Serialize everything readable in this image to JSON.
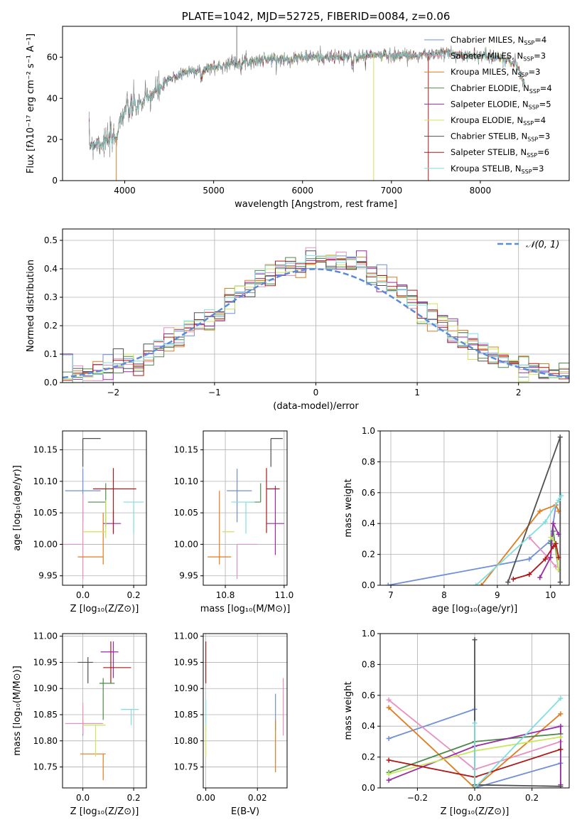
{
  "colors": {
    "chab_miles": "#6f8fd8",
    "salp_miles": "#e88fc0",
    "krou_miles": "#e07b20",
    "chab_elodie": "#4c8a4c",
    "salp_elodie": "#9a2aa8",
    "krou_elodie": "#c8e85a",
    "chab_stelib": "#505050",
    "salp_stelib": "#b01818",
    "krou_stelib": "#80dede",
    "gauss": "#5b8bd8"
  },
  "chart_data": [
    {
      "id": "spectrum",
      "type": "line",
      "title": "PLATE=1042, MJD=52725, FIBERID=0084, z=0.06",
      "xlabel": "wavelength [Angstrom, rest frame]",
      "ylabel": "Flux [fλ10⁻¹⁷ erg cm⁻² s⁻¹ A⁻¹]",
      "xlim": [
        3300,
        9000
      ],
      "ylim": [
        0,
        75
      ],
      "xticks": [
        "4000",
        "5000",
        "6000",
        "7000",
        "8000"
      ],
      "yticks": [
        "0",
        "20",
        "40",
        "60"
      ],
      "legend": "upper-right",
      "legend_entries": [
        {
          "label": "Chabrier MILES, N",
          "sub": "SSP",
          "suffix": "=4"
        },
        {
          "label": "Salpeter MILES, N",
          "sub": "SSP",
          "suffix": "=3"
        },
        {
          "label": "Kroupa MILES, N",
          "sub": "SSP",
          "suffix": "=3"
        },
        {
          "label": "Chabrier ELODIE, N",
          "sub": "SSP",
          "suffix": "=4"
        },
        {
          "label": "Salpeter ELODIE, N",
          "sub": "SSP",
          "suffix": "=5"
        },
        {
          "label": "Kroupa ELODIE, N",
          "sub": "SSP",
          "suffix": "=4"
        },
        {
          "label": "Chabrier STELIB, N",
          "sub": "SSP",
          "suffix": "=3"
        },
        {
          "label": "Salpeter STELIB, N",
          "sub": "SSP",
          "suffix": "=6"
        },
        {
          "label": "Kroupa STELIB, N",
          "sub": "SSP",
          "suffix": "=3"
        }
      ],
      "continuum": [
        [
          3600,
          18
        ],
        [
          3800,
          19
        ],
        [
          3900,
          21
        ],
        [
          3950,
          30
        ],
        [
          4000,
          34
        ],
        [
          4200,
          38
        ],
        [
          4350,
          43
        ],
        [
          4500,
          49
        ],
        [
          4700,
          53
        ],
        [
          5000,
          55
        ],
        [
          5200,
          57
        ],
        [
          5400,
          58
        ],
        [
          5600,
          59
        ],
        [
          5800,
          59
        ],
        [
          6000,
          60
        ],
        [
          6200,
          60
        ],
        [
          6500,
          60
        ],
        [
          6800,
          61
        ],
        [
          7000,
          61
        ],
        [
          7200,
          61
        ],
        [
          7400,
          61
        ],
        [
          7600,
          62
        ],
        [
          7800,
          61
        ],
        [
          8000,
          61
        ],
        [
          8200,
          60
        ],
        [
          8400,
          57
        ],
        [
          8500,
          47
        ]
      ]
    },
    {
      "id": "residuals",
      "type": "histogram",
      "xlabel": "(data-model)/error",
      "ylabel": "Normed distribution",
      "xlim": [
        -2.5,
        2.5
      ],
      "ylim": [
        0,
        0.54
      ],
      "xticks": [
        "−2",
        "−1",
        "0",
        "1",
        "2"
      ],
      "yticks": [
        "0.0",
        "0.1",
        "0.2",
        "0.3",
        "0.4",
        "0.5"
      ],
      "grid": true,
      "legend": "upper-right",
      "gauss_label": "𝒩(0, 1)",
      "bin_width": 0.1
    },
    {
      "id": "age_vs_Z",
      "type": "errorbar",
      "xlabel": "Z [log₁₀(Z/Z⊙)]",
      "ylabel": "age [log₁₀(age/yr)]",
      "xlim": [
        -0.08,
        0.25
      ],
      "ylim": [
        9.935,
        10.18
      ],
      "xticks": [
        "0.0",
        "0.2"
      ],
      "yticks": [
        "9.95",
        "10.00",
        "10.05",
        "10.10",
        "10.15"
      ],
      "grid": true,
      "points": [
        {
          "color": "chab_miles",
          "x": 0.0,
          "y": 10.085,
          "xerr": [
            0.07,
            0.07
          ],
          "yerr": [
            0.05,
            0.035
          ]
        },
        {
          "color": "salp_miles",
          "x": 0.0,
          "y": 10.0,
          "xerr": [
            0.08,
            0.0
          ],
          "yerr": [
            0.055,
            0.08
          ]
        },
        {
          "color": "krou_miles",
          "x": 0.03,
          "y": 9.98,
          "xerr": [
            0.05,
            0.05
          ],
          "yerr": [
            0.0,
            0.0
          ]
        },
        {
          "color": "krou_miles",
          "x": 0.08,
          "y": 9.98,
          "xerr": [
            0.0,
            0.0
          ],
          "yerr": [
            0.012,
            0.07
          ]
        },
        {
          "color": "chab_elodie",
          "x": 0.09,
          "y": 10.067,
          "xerr": [
            0.07,
            0.0
          ],
          "yerr": [
            0.04,
            0.03
          ]
        },
        {
          "color": "salp_elodie",
          "x": 0.12,
          "y": 10.033,
          "xerr": [
            0.04,
            0.03
          ],
          "yerr": [
            0.0,
            0.0
          ]
        },
        {
          "color": "salp_elodie",
          "x": 0.12,
          "y": 10.033,
          "xerr": [
            0.0,
            0.0
          ],
          "yerr": [
            0.017,
            0.02
          ]
        },
        {
          "color": "krou_elodie",
          "x": 0.05,
          "y": 10.02,
          "xerr": [
            0.05,
            0.04
          ],
          "yerr": [
            0.0,
            0.0
          ]
        },
        {
          "color": "krou_elodie",
          "x": 0.09,
          "y": 10.02,
          "xerr": [
            0.0,
            0.0
          ],
          "yerr": [
            0.01,
            0.05
          ]
        },
        {
          "color": "chab_stelib",
          "x": 0.0,
          "y": 10.168,
          "xerr": [
            0.0,
            0.07
          ],
          "yerr": [
            0.045,
            0.0
          ]
        },
        {
          "color": "salp_stelib",
          "x": 0.12,
          "y": 10.088,
          "xerr": [
            0.08,
            0.09
          ],
          "yerr": [
            0.07,
            0.033
          ]
        },
        {
          "color": "krou_stelib",
          "x": 0.2,
          "y": 10.067,
          "xerr": [
            0.04,
            0.04
          ],
          "yerr": [
            0.05,
            0.0
          ]
        }
      ]
    },
    {
      "id": "age_vs_mass",
      "type": "errorbar",
      "xlabel": "mass [log₁₀(M/M⊙)]",
      "ylabel": "",
      "xlim": [
        10.725,
        11.01
      ],
      "ylim": [
        9.935,
        10.18
      ],
      "xticks": [
        "10.8",
        "11.0"
      ],
      "yticks": [
        "9.95",
        "10.00",
        "10.05",
        "10.10",
        "10.15"
      ],
      "grid": true,
      "points": [
        {
          "color": "chab_miles",
          "x": 10.84,
          "y": 10.085,
          "xerr": [
            0.035,
            0.05
          ],
          "yerr": [
            0.05,
            0.035
          ]
        },
        {
          "color": "salp_miles",
          "x": 10.84,
          "y": 10.0,
          "xerr": [
            0.0,
            0.07
          ],
          "yerr": [
            0.055,
            0.0
          ]
        },
        {
          "color": "krou_miles",
          "x": 10.78,
          "y": 9.98,
          "xerr": [
            0.04,
            0.04
          ],
          "yerr": [
            0.012,
            0.105
          ]
        },
        {
          "color": "chab_elodie",
          "x": 10.92,
          "y": 10.067,
          "xerr": [
            0.04,
            0.0
          ],
          "yerr": [
            0.0,
            0.03
          ]
        },
        {
          "color": "salp_elodie",
          "x": 10.97,
          "y": 10.033,
          "xerr": [
            0.03,
            0.03
          ],
          "yerr": [
            0.05,
            0.06
          ]
        },
        {
          "color": "krou_elodie",
          "x": 10.83,
          "y": 10.02,
          "xerr": [
            0.04,
            0.0
          ],
          "yerr": [
            0.0,
            0.0
          ]
        },
        {
          "color": "chab_stelib",
          "x": 10.955,
          "y": 10.168,
          "xerr": [
            0.0,
            0.04
          ],
          "yerr": [
            0.045,
            0.0
          ]
        },
        {
          "color": "salp_stelib",
          "x": 10.94,
          "y": 10.088,
          "xerr": [
            0.0,
            0.045
          ],
          "yerr": [
            0.07,
            0.033
          ]
        },
        {
          "color": "krou_stelib",
          "x": 10.87,
          "y": 10.067,
          "xerr": [
            0.05,
            0.03
          ],
          "yerr": [
            0.05,
            0.0
          ]
        }
      ]
    },
    {
      "id": "weight_vs_age",
      "type": "line",
      "xlabel": "age [log₁₀(age/yr)]",
      "ylabel": "mass weight",
      "xlim": [
        6.8,
        10.35
      ],
      "ylim": [
        0,
        1.0
      ],
      "xticks": [
        "7",
        "8",
        "9",
        "10"
      ],
      "yticks": [
        "0.0",
        "0.2",
        "0.4",
        "0.6",
        "0.8",
        "1.0"
      ],
      "grid": true,
      "series": [
        {
          "color": "chab_miles",
          "x": [
            6.95,
            9.6,
            10.0,
            10.1
          ],
          "y": [
            0.0,
            0.17,
            0.29,
            0.52
          ]
        },
        {
          "color": "salp_miles",
          "x": [
            9.6,
            9.95,
            10.1
          ],
          "y": [
            0.31,
            0.18,
            0.12
          ]
        },
        {
          "color": "krou_miles",
          "x": [
            8.7,
            9.8,
            10.1,
            10.15
          ],
          "y": [
            0.0,
            0.48,
            0.52,
            0.48
          ]
        },
        {
          "color": "chab_elodie",
          "x": [
            10.0,
            10.05,
            10.15
          ],
          "y": [
            0.27,
            0.35,
            0.1
          ]
        },
        {
          "color": "salp_elodie",
          "x": [
            9.8,
            10.0,
            10.05,
            10.15
          ],
          "y": [
            0.05,
            0.18,
            0.4,
            0.33
          ]
        },
        {
          "color": "krou_elodie",
          "x": [
            10.0,
            10.1,
            10.15
          ],
          "y": [
            0.31,
            0.27,
            0.1
          ]
        },
        {
          "color": "chab_stelib",
          "x": [
            9.2,
            10.18,
            10.18
          ],
          "y": [
            0.02,
            0.96,
            0.02
          ]
        },
        {
          "color": "salp_stelib",
          "x": [
            9.3,
            9.6,
            9.9,
            10.05,
            10.1,
            10.15
          ],
          "y": [
            0.04,
            0.07,
            0.17,
            0.25,
            0.27,
            0.18
          ]
        },
        {
          "color": "krou_stelib",
          "x": [
            8.6,
            9.9,
            10.15,
            10.2
          ],
          "y": [
            0.0,
            0.41,
            0.55,
            0.58
          ]
        }
      ]
    },
    {
      "id": "mass_vs_Z",
      "type": "errorbar",
      "xlabel": "Z [log₁₀(Z/Z⊙)]",
      "ylabel": "mass [log₁₀(M/M⊙)]",
      "xlim": [
        -0.08,
        0.25
      ],
      "ylim": [
        10.71,
        11.005
      ],
      "xticks": [
        "0.0",
        "0.2"
      ],
      "yticks": [
        "10.75",
        "10.80",
        "10.85",
        "10.90",
        "10.95",
        "11.00"
      ],
      "grid": true,
      "points": [
        {
          "color": "chab_miles",
          "x": 0.0,
          "y": 10.84,
          "xerr": [
            0.0,
            0.0
          ],
          "yerr": [
            0.03,
            0.0
          ]
        },
        {
          "color": "salp_miles",
          "x": 0.0,
          "y": 10.833,
          "xerr": [
            0.07,
            0.08
          ],
          "yerr": [
            0.02,
            0.04
          ]
        },
        {
          "color": "krou_miles",
          "x": 0.05,
          "y": 10.775,
          "xerr": [
            0.06,
            0.04
          ],
          "yerr": [
            0.0,
            0.0
          ]
        },
        {
          "color": "krou_miles",
          "x": 0.08,
          "y": 10.775,
          "xerr": [
            0.0,
            0.0
          ],
          "yerr": [
            0.05,
            0.0
          ]
        },
        {
          "color": "chab_elodie",
          "x": 0.08,
          "y": 10.91,
          "xerr": [
            0.0,
            0.0
          ],
          "yerr": [
            0.07,
            0.01
          ]
        },
        {
          "color": "salp_elodie",
          "x": 0.12,
          "y": 10.97,
          "xerr": [
            0.05,
            0.02
          ],
          "yerr": [
            0.05,
            0.02
          ]
        },
        {
          "color": "krou_elodie",
          "x": 0.05,
          "y": 10.83,
          "xerr": [
            0.05,
            0.04
          ],
          "yerr": [
            0.06,
            0.0
          ]
        },
        {
          "color": "chab_stelib",
          "x": 0.02,
          "y": 10.95,
          "xerr": [
            0.04,
            0.02
          ],
          "yerr": [
            0.04,
            0.01
          ]
        },
        {
          "color": "salp_stelib",
          "x": 0.11,
          "y": 10.94,
          "xerr": [
            0.03,
            0.08
          ],
          "yerr": [
            0.03,
            0.05
          ]
        },
        {
          "color": "chab_elodie",
          "x": 0.095,
          "y": 10.91,
          "xerr": [
            0.03,
            0.03
          ],
          "yerr": [
            0.0,
            0.0
          ]
        },
        {
          "color": "krou_stelib",
          "x": 0.19,
          "y": 10.86,
          "xerr": [
            0.04,
            0.03
          ],
          "yerr": [
            0.03,
            0.0
          ]
        }
      ]
    },
    {
      "id": "mass_vs_ebv",
      "type": "errorbar",
      "xlabel": "E(B-V)",
      "ylabel": "",
      "xlim": [
        -0.001,
        0.0315
      ],
      "ylim": [
        10.71,
        11.005
      ],
      "xticks": [
        "0.00",
        "0.02"
      ],
      "yticks": [
        "10.75",
        "10.80",
        "10.85",
        "10.90",
        "10.95",
        "11.00"
      ],
      "grid": true,
      "points": [
        {
          "color": "salp_stelib",
          "x": 0.0,
          "y": 10.95,
          "xerr": [
            0.0,
            0.0
          ],
          "yerr": [
            0.04,
            0.04
          ]
        },
        {
          "color": "krou_stelib",
          "x": 0.0,
          "y": 10.86,
          "xerr": [
            0.0,
            0.0
          ],
          "yerr": [
            0.04,
            0.02
          ]
        },
        {
          "color": "krou_elodie",
          "x": 0.0,
          "y": 10.8,
          "xerr": [
            0.0,
            0.0
          ],
          "yerr": [
            0.03,
            0.03
          ]
        },
        {
          "color": "chab_miles",
          "x": 0.027,
          "y": 10.86,
          "xerr": [
            0.0,
            0.0
          ],
          "yerr": [
            0.04,
            0.03
          ]
        },
        {
          "color": "krou_miles",
          "x": 0.027,
          "y": 10.79,
          "xerr": [
            0.0,
            0.0
          ],
          "yerr": [
            0.05,
            0.05
          ]
        },
        {
          "color": "salp_miles",
          "x": 0.03,
          "y": 10.86,
          "xerr": [
            0.0,
            0.0
          ],
          "yerr": [
            0.05,
            0.06
          ]
        }
      ]
    },
    {
      "id": "weight_vs_Z",
      "type": "line",
      "xlabel": "Z [log₁₀(Z/Z⊙)]",
      "ylabel": "mass weight",
      "xlim": [
        -0.33,
        0.33
      ],
      "ylim": [
        0,
        1.0
      ],
      "xticks": [
        "−0.2",
        "0.0",
        "0.2"
      ],
      "yticks": [
        "0.0",
        "0.2",
        "0.4",
        "0.6",
        "0.8",
        "1.0"
      ],
      "grid": true,
      "series": [
        {
          "color": "chab_miles",
          "x": [
            -0.3,
            0.0,
            0.0,
            0.3
          ],
          "y": [
            0.32,
            0.51,
            0.0,
            0.16
          ]
        },
        {
          "color": "salp_miles",
          "x": [
            -0.3,
            0.0,
            0.3
          ],
          "y": [
            0.57,
            0.12,
            0.3
          ]
        },
        {
          "color": "krou_miles",
          "x": [
            -0.3,
            0.0,
            0.3
          ],
          "y": [
            0.52,
            0.0,
            0.48
          ]
        },
        {
          "color": "chab_elodie",
          "x": [
            -0.3,
            0.0,
            0.3
          ],
          "y": [
            0.1,
            0.3,
            0.35
          ]
        },
        {
          "color": "salp_elodie",
          "x": [
            -0.3,
            0.0,
            0.3,
            0.3
          ],
          "y": [
            0.05,
            0.27,
            0.4,
            0.02
          ]
        },
        {
          "color": "krou_elodie",
          "x": [
            -0.3,
            0.0,
            0.3
          ],
          "y": [
            0.09,
            0.24,
            0.33
          ]
        },
        {
          "color": "chab_stelib",
          "x": [
            0.0,
            0.0,
            0.3
          ],
          "y": [
            0.96,
            0.02,
            0.01
          ]
        },
        {
          "color": "salp_stelib",
          "x": [
            -0.3,
            0.0,
            0.3
          ],
          "y": [
            0.18,
            0.07,
            0.25
          ]
        },
        {
          "color": "krou_stelib",
          "x": [
            0.0,
            0.0,
            0.3
          ],
          "y": [
            0.42,
            0.0,
            0.58
          ]
        }
      ]
    }
  ]
}
